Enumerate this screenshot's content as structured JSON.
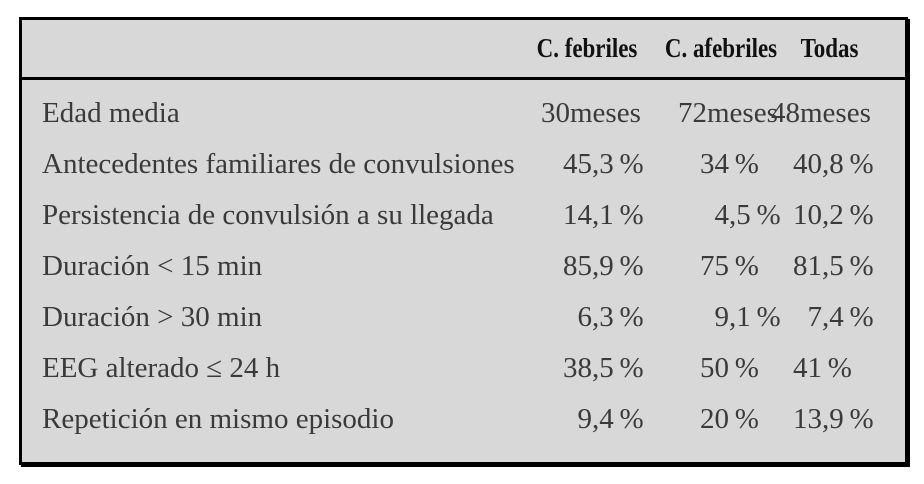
{
  "colors": {
    "page_background": "#ffffff",
    "table_background": "#d8d8d8",
    "border": "#000000",
    "body_text": "#3a3a3a",
    "header_text": "#111111"
  },
  "chart_data": {
    "type": "table",
    "title": "",
    "columns": [
      "C. febriles",
      "C. afebriles",
      "Todas"
    ],
    "rows": [
      {
        "label": "Edad media",
        "values": [
          "30 meses",
          "72 meses",
          "48 meses"
        ]
      },
      {
        "label": "Antecedentes familiares de convulsiones",
        "values": [
          "45,3%",
          "34%",
          "40,8%"
        ]
      },
      {
        "label": "Persistencia de convulsión a su llegada",
        "values": [
          "14,1%",
          "4,5%",
          "10,2%"
        ]
      },
      {
        "label": "Duración < 15 min",
        "values": [
          "85,9%",
          "75%",
          "81,5%"
        ]
      },
      {
        "label": "Duración > 30 min",
        "values": [
          "6,3%",
          "9,1%",
          "7,4%"
        ]
      },
      {
        "label": "EEG alterado ≤ 24 h",
        "values": [
          "38,5%",
          "50%",
          "41%"
        ]
      },
      {
        "label": "Repetición en mismo episodio",
        "values": [
          "9,4%",
          "20%",
          "13,9%"
        ]
      }
    ]
  }
}
